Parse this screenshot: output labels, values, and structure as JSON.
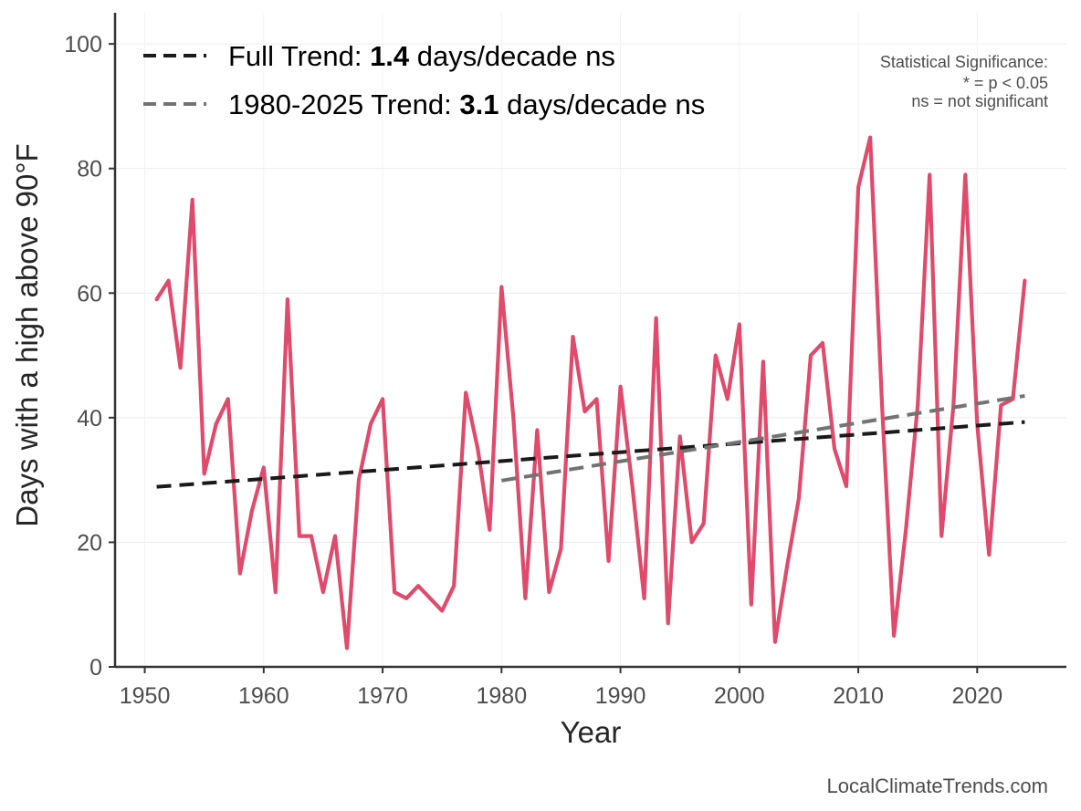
{
  "chart_data": {
    "type": "line",
    "title": "",
    "xlabel": "Year",
    "ylabel": "Days with a high above 90°F",
    "xlim": [
      1947.5,
      2027.5
    ],
    "ylim": [
      0,
      105
    ],
    "xticks": [
      1950,
      1960,
      1970,
      1980,
      1990,
      2000,
      2010,
      2020
    ],
    "yticks": [
      0,
      20,
      40,
      60,
      80,
      100
    ],
    "grid": true,
    "legend_position": "top-left",
    "series": [
      {
        "name": "Days above 90°F",
        "color": "#e04a6b",
        "x": [
          1951,
          1952,
          1953,
          1954,
          1955,
          1956,
          1957,
          1958,
          1959,
          1960,
          1961,
          1962,
          1963,
          1964,
          1965,
          1966,
          1967,
          1968,
          1969,
          1970,
          1971,
          1972,
          1973,
          1974,
          1975,
          1976,
          1977,
          1978,
          1979,
          1980,
          1981,
          1982,
          1983,
          1984,
          1985,
          1986,
          1987,
          1988,
          1989,
          1990,
          1991,
          1992,
          1993,
          1994,
          1995,
          1996,
          1997,
          1998,
          1999,
          2000,
          2001,
          2002,
          2003,
          2004,
          2005,
          2006,
          2007,
          2008,
          2009,
          2010,
          2011,
          2012,
          2013,
          2014,
          2015,
          2016,
          2017,
          2018,
          2019,
          2020,
          2021,
          2022,
          2023,
          2024
        ],
        "values": [
          59,
          62,
          48,
          75,
          31,
          39,
          43,
          15,
          25,
          32,
          12,
          59,
          21,
          21,
          12,
          21,
          3,
          30,
          39,
          43,
          12,
          11,
          13,
          11,
          9,
          13,
          44,
          35,
          22,
          61,
          40,
          11,
          38,
          12,
          19,
          53,
          41,
          43,
          17,
          45,
          29,
          11,
          56,
          7,
          37,
          20,
          23,
          50,
          43,
          55,
          10,
          49,
          4,
          16,
          27,
          50,
          52,
          35,
          29,
          77,
          85,
          42,
          5,
          22,
          42,
          79,
          21,
          42,
          79,
          39,
          18,
          42,
          43,
          62
        ]
      }
    ],
    "trend_lines": [
      {
        "name": "Full Trend",
        "color": "#1a1a1a",
        "x": [
          1951,
          2024
        ],
        "values": [
          28.9,
          39.3
        ]
      },
      {
        "name": "1980-2025 Trend",
        "color": "#737373",
        "x": [
          1980,
          2024
        ],
        "values": [
          29.9,
          43.5
        ]
      }
    ],
    "legend": [
      {
        "prefix": "Full Trend: ",
        "value": "1.4",
        "suffix": " days/decade ns",
        "color": "#1a1a1a"
      },
      {
        "prefix": "1980-2025 Trend: ",
        "value": "3.1",
        "suffix": " days/decade ns",
        "color": "#737373"
      }
    ],
    "annotations": {
      "significance_title": "Statistical Significance:",
      "significance_p": "* = p < 0.05",
      "significance_ns": "ns = not significant",
      "credit": "LocalClimateTrends.com"
    }
  }
}
